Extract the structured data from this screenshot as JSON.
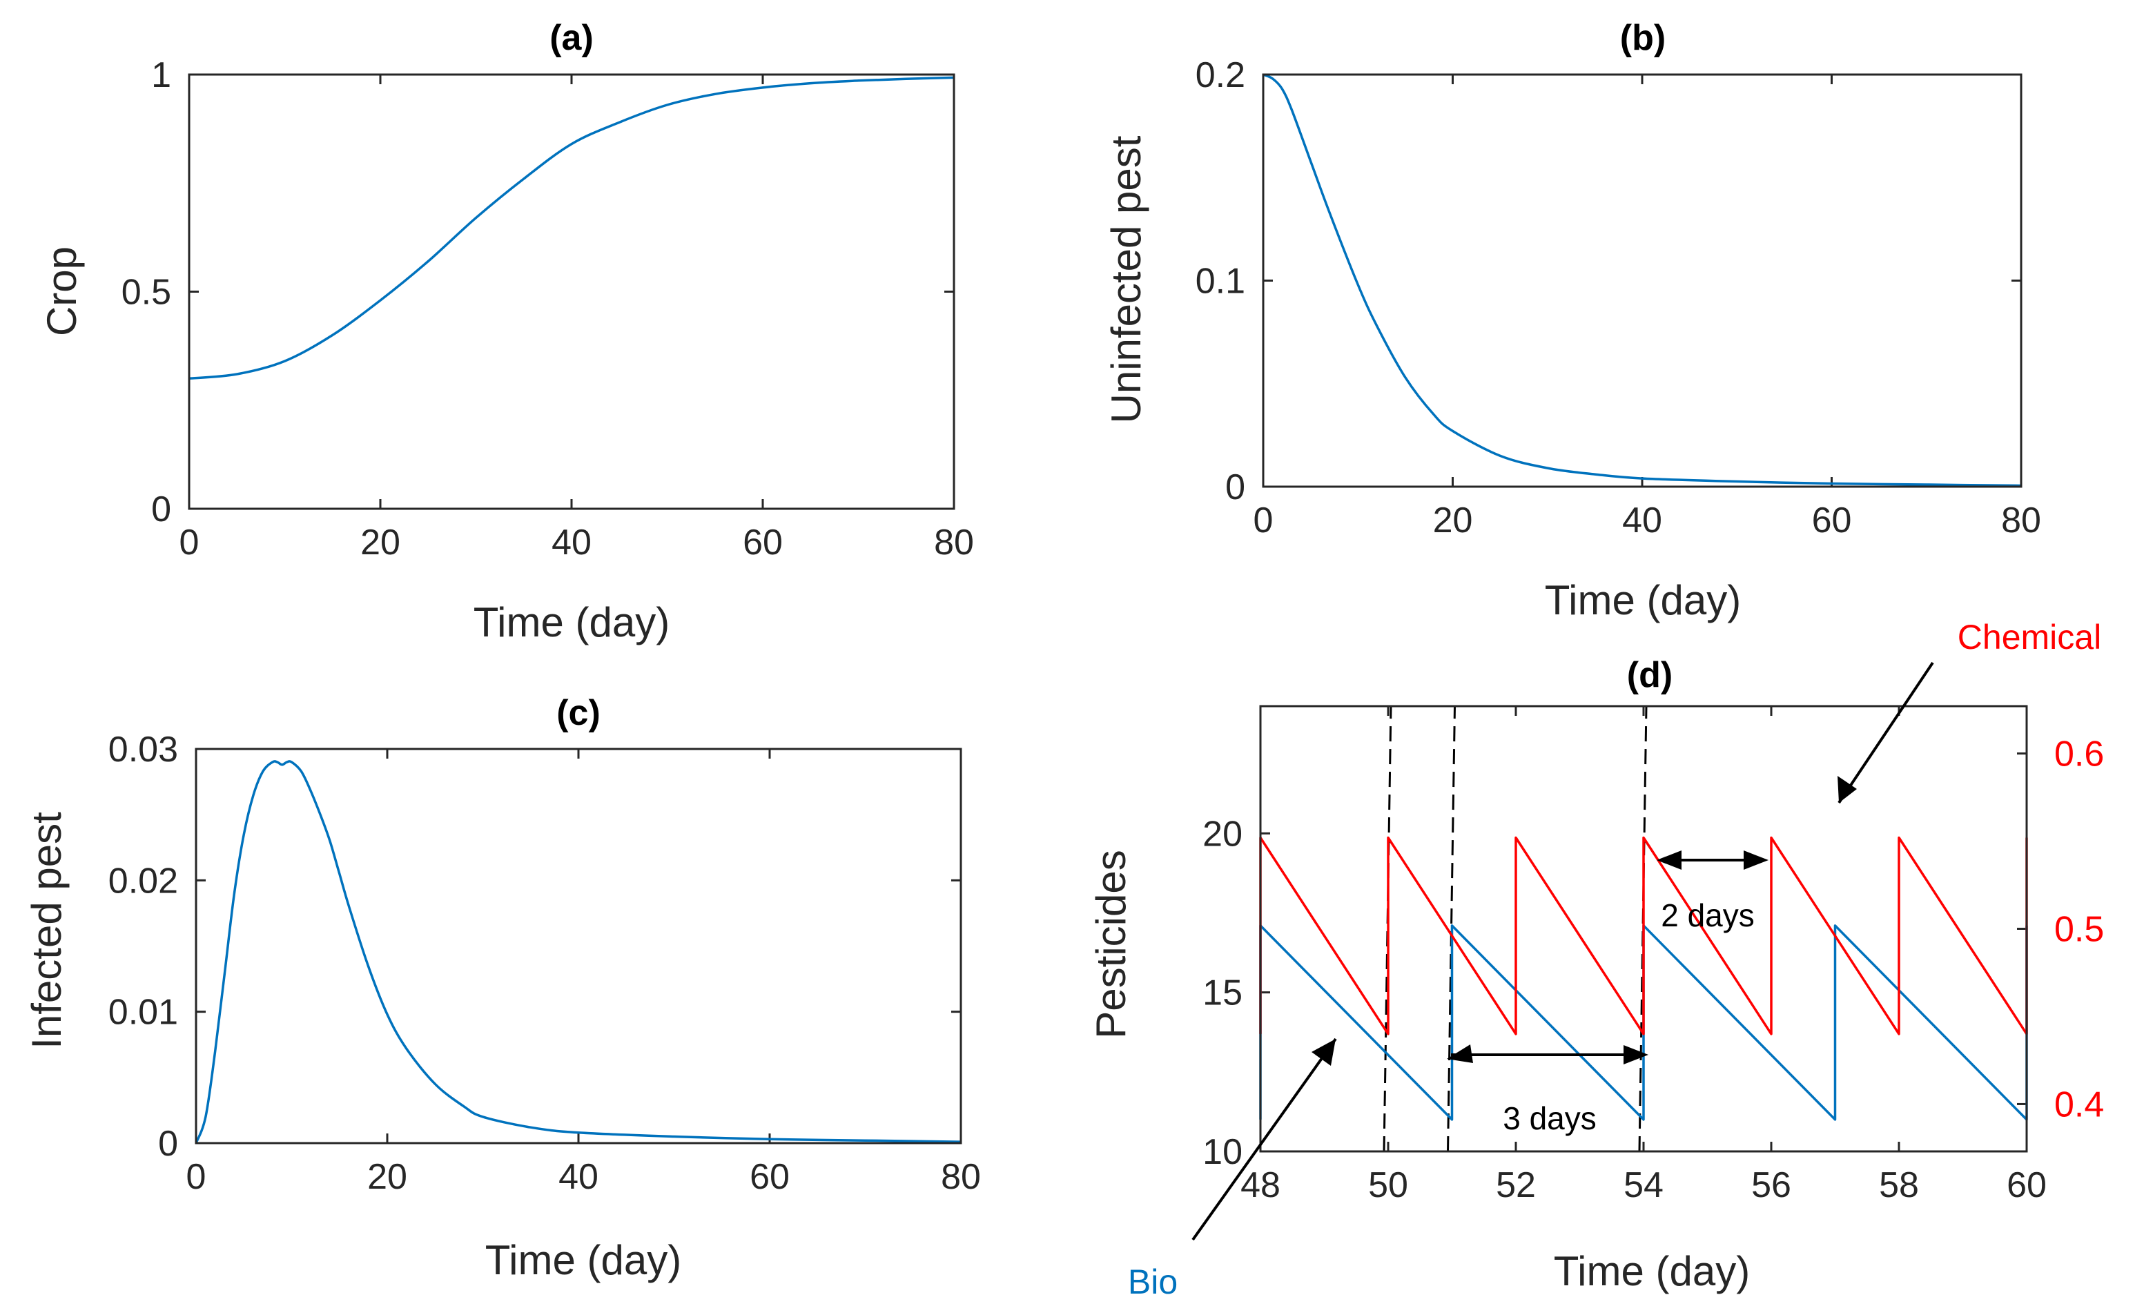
{
  "colors": {
    "blue": "#0072bd",
    "red": "#ff0000",
    "axis": "#262626",
    "text": "#000000"
  },
  "chart_data": [
    {
      "id": "a",
      "type": "line",
      "title": "(a)",
      "xlabel": "Time (day)",
      "ylabel": "Crop",
      "xlim": [
        0,
        80
      ],
      "ylim": [
        0,
        1
      ],
      "xticks": [
        0,
        20,
        40,
        60,
        80
      ],
      "yticks": [
        0,
        0.5,
        1
      ],
      "xticklabels": [
        "0",
        "20",
        "40",
        "60",
        "80"
      ],
      "yticklabels": [
        "0",
        "0.5",
        "1"
      ],
      "series": [
        {
          "name": "Crop",
          "color": "#0072bd",
          "x": [
            0,
            5,
            10,
            15,
            20,
            25,
            30,
            35,
            40,
            45,
            50,
            55,
            60,
            65,
            70,
            75,
            80
          ],
          "y": [
            0.3,
            0.31,
            0.34,
            0.4,
            0.48,
            0.57,
            0.67,
            0.76,
            0.84,
            0.89,
            0.93,
            0.955,
            0.97,
            0.98,
            0.986,
            0.99,
            0.993
          ]
        }
      ]
    },
    {
      "id": "b",
      "type": "line",
      "title": "(b)",
      "xlabel": "Time (day)",
      "ylabel": "Uninfected pest",
      "xlim": [
        0,
        80
      ],
      "ylim": [
        0,
        0.2
      ],
      "xticks": [
        0,
        20,
        40,
        60,
        80
      ],
      "yticks": [
        0,
        0.1,
        0.2
      ],
      "xticklabels": [
        "0",
        "20",
        "40",
        "60",
        "80"
      ],
      "yticklabels": [
        "0",
        "0.1",
        "0.2"
      ],
      "series": [
        {
          "name": "Uninfected pest",
          "color": "#0072bd",
          "x": [
            0,
            1,
            2,
            3,
            5,
            7,
            10,
            12,
            15,
            18,
            20,
            25,
            30,
            35,
            40,
            50,
            60,
            70,
            80
          ],
          "y": [
            0.2,
            0.198,
            0.193,
            0.183,
            0.158,
            0.133,
            0.098,
            0.078,
            0.053,
            0.035,
            0.027,
            0.015,
            0.009,
            0.006,
            0.004,
            0.0025,
            0.0015,
            0.001,
            0.0005
          ]
        }
      ]
    },
    {
      "id": "c",
      "type": "line",
      "title": "(c)",
      "xlabel": "Time (day)",
      "ylabel": "Infected pest",
      "xlim": [
        0,
        80
      ],
      "ylim": [
        0,
        0.03
      ],
      "xticks": [
        0,
        20,
        40,
        60,
        80
      ],
      "yticks": [
        0,
        0.01,
        0.02,
        0.03
      ],
      "xticklabels": [
        "0",
        "20",
        "40",
        "60",
        "80"
      ],
      "yticklabels": [
        "0",
        "0.01",
        "0.02",
        "0.03"
      ],
      "series": [
        {
          "name": "Infected pest",
          "color": "#0072bd",
          "x": [
            0,
            1,
            2,
            3,
            4,
            5,
            6,
            7,
            8,
            8.5,
            9,
            9.5,
            10,
            11,
            12,
            13,
            14,
            15,
            16,
            18,
            20,
            22,
            25,
            28,
            30,
            35,
            40,
            50,
            60,
            70,
            80
          ],
          "y": [
            0,
            0.002,
            0.007,
            0.013,
            0.019,
            0.0235,
            0.0265,
            0.0283,
            0.029,
            0.029,
            0.0288,
            0.029,
            0.029,
            0.0283,
            0.0268,
            0.025,
            0.023,
            0.0205,
            0.018,
            0.0135,
            0.0098,
            0.0072,
            0.0045,
            0.0028,
            0.002,
            0.0012,
            0.0008,
            0.0005,
            0.0003,
            0.0002,
            0.0001
          ]
        }
      ]
    },
    {
      "id": "d",
      "type": "line",
      "title": "(d)",
      "xlabel": "Time (day)",
      "ylabel": "Pesticides",
      "xlim": [
        48,
        60
      ],
      "ylim": [
        10,
        24
      ],
      "ylim_right": [
        0.373,
        0.627
      ],
      "xticks": [
        48,
        50,
        52,
        54,
        56,
        58,
        60
      ],
      "yticks": [
        10,
        15,
        20
      ],
      "yticks_right": [
        0.4,
        0.5,
        0.6
      ],
      "xticklabels": [
        "48",
        "50",
        "52",
        "54",
        "56",
        "58",
        "60"
      ],
      "yticklabels": [
        "10",
        "15",
        "20"
      ],
      "yticklabels_right": [
        "0.4",
        "0.5",
        "0.6"
      ],
      "series": [
        {
          "name": "Bio",
          "color": "#0072bd",
          "axis": "left",
          "x": [
            48,
            48,
            51,
            51,
            54,
            54,
            57,
            57,
            60,
            60
          ],
          "y": [
            11,
            17.1,
            11,
            17.1,
            11,
            17.1,
            11,
            17.1,
            11,
            17.1
          ]
        },
        {
          "name": "Chemical",
          "color": "#ff0000",
          "axis": "right",
          "x": [
            48,
            48,
            50,
            50,
            52,
            52,
            54,
            54,
            56,
            56,
            58,
            58,
            60,
            60
          ],
          "y": [
            0.44,
            0.552,
            0.44,
            0.552,
            0.44,
            0.552,
            0.44,
            0.552,
            0.44,
            0.552,
            0.44,
            0.552,
            0.44,
            0.552
          ]
        }
      ],
      "dashed_lines_x": [
        50,
        51,
        54
      ],
      "annotations": {
        "chemical": "Chemical",
        "bio": "Bio",
        "gap_chemical": "2 days",
        "gap_bio": "3 days"
      }
    }
  ]
}
